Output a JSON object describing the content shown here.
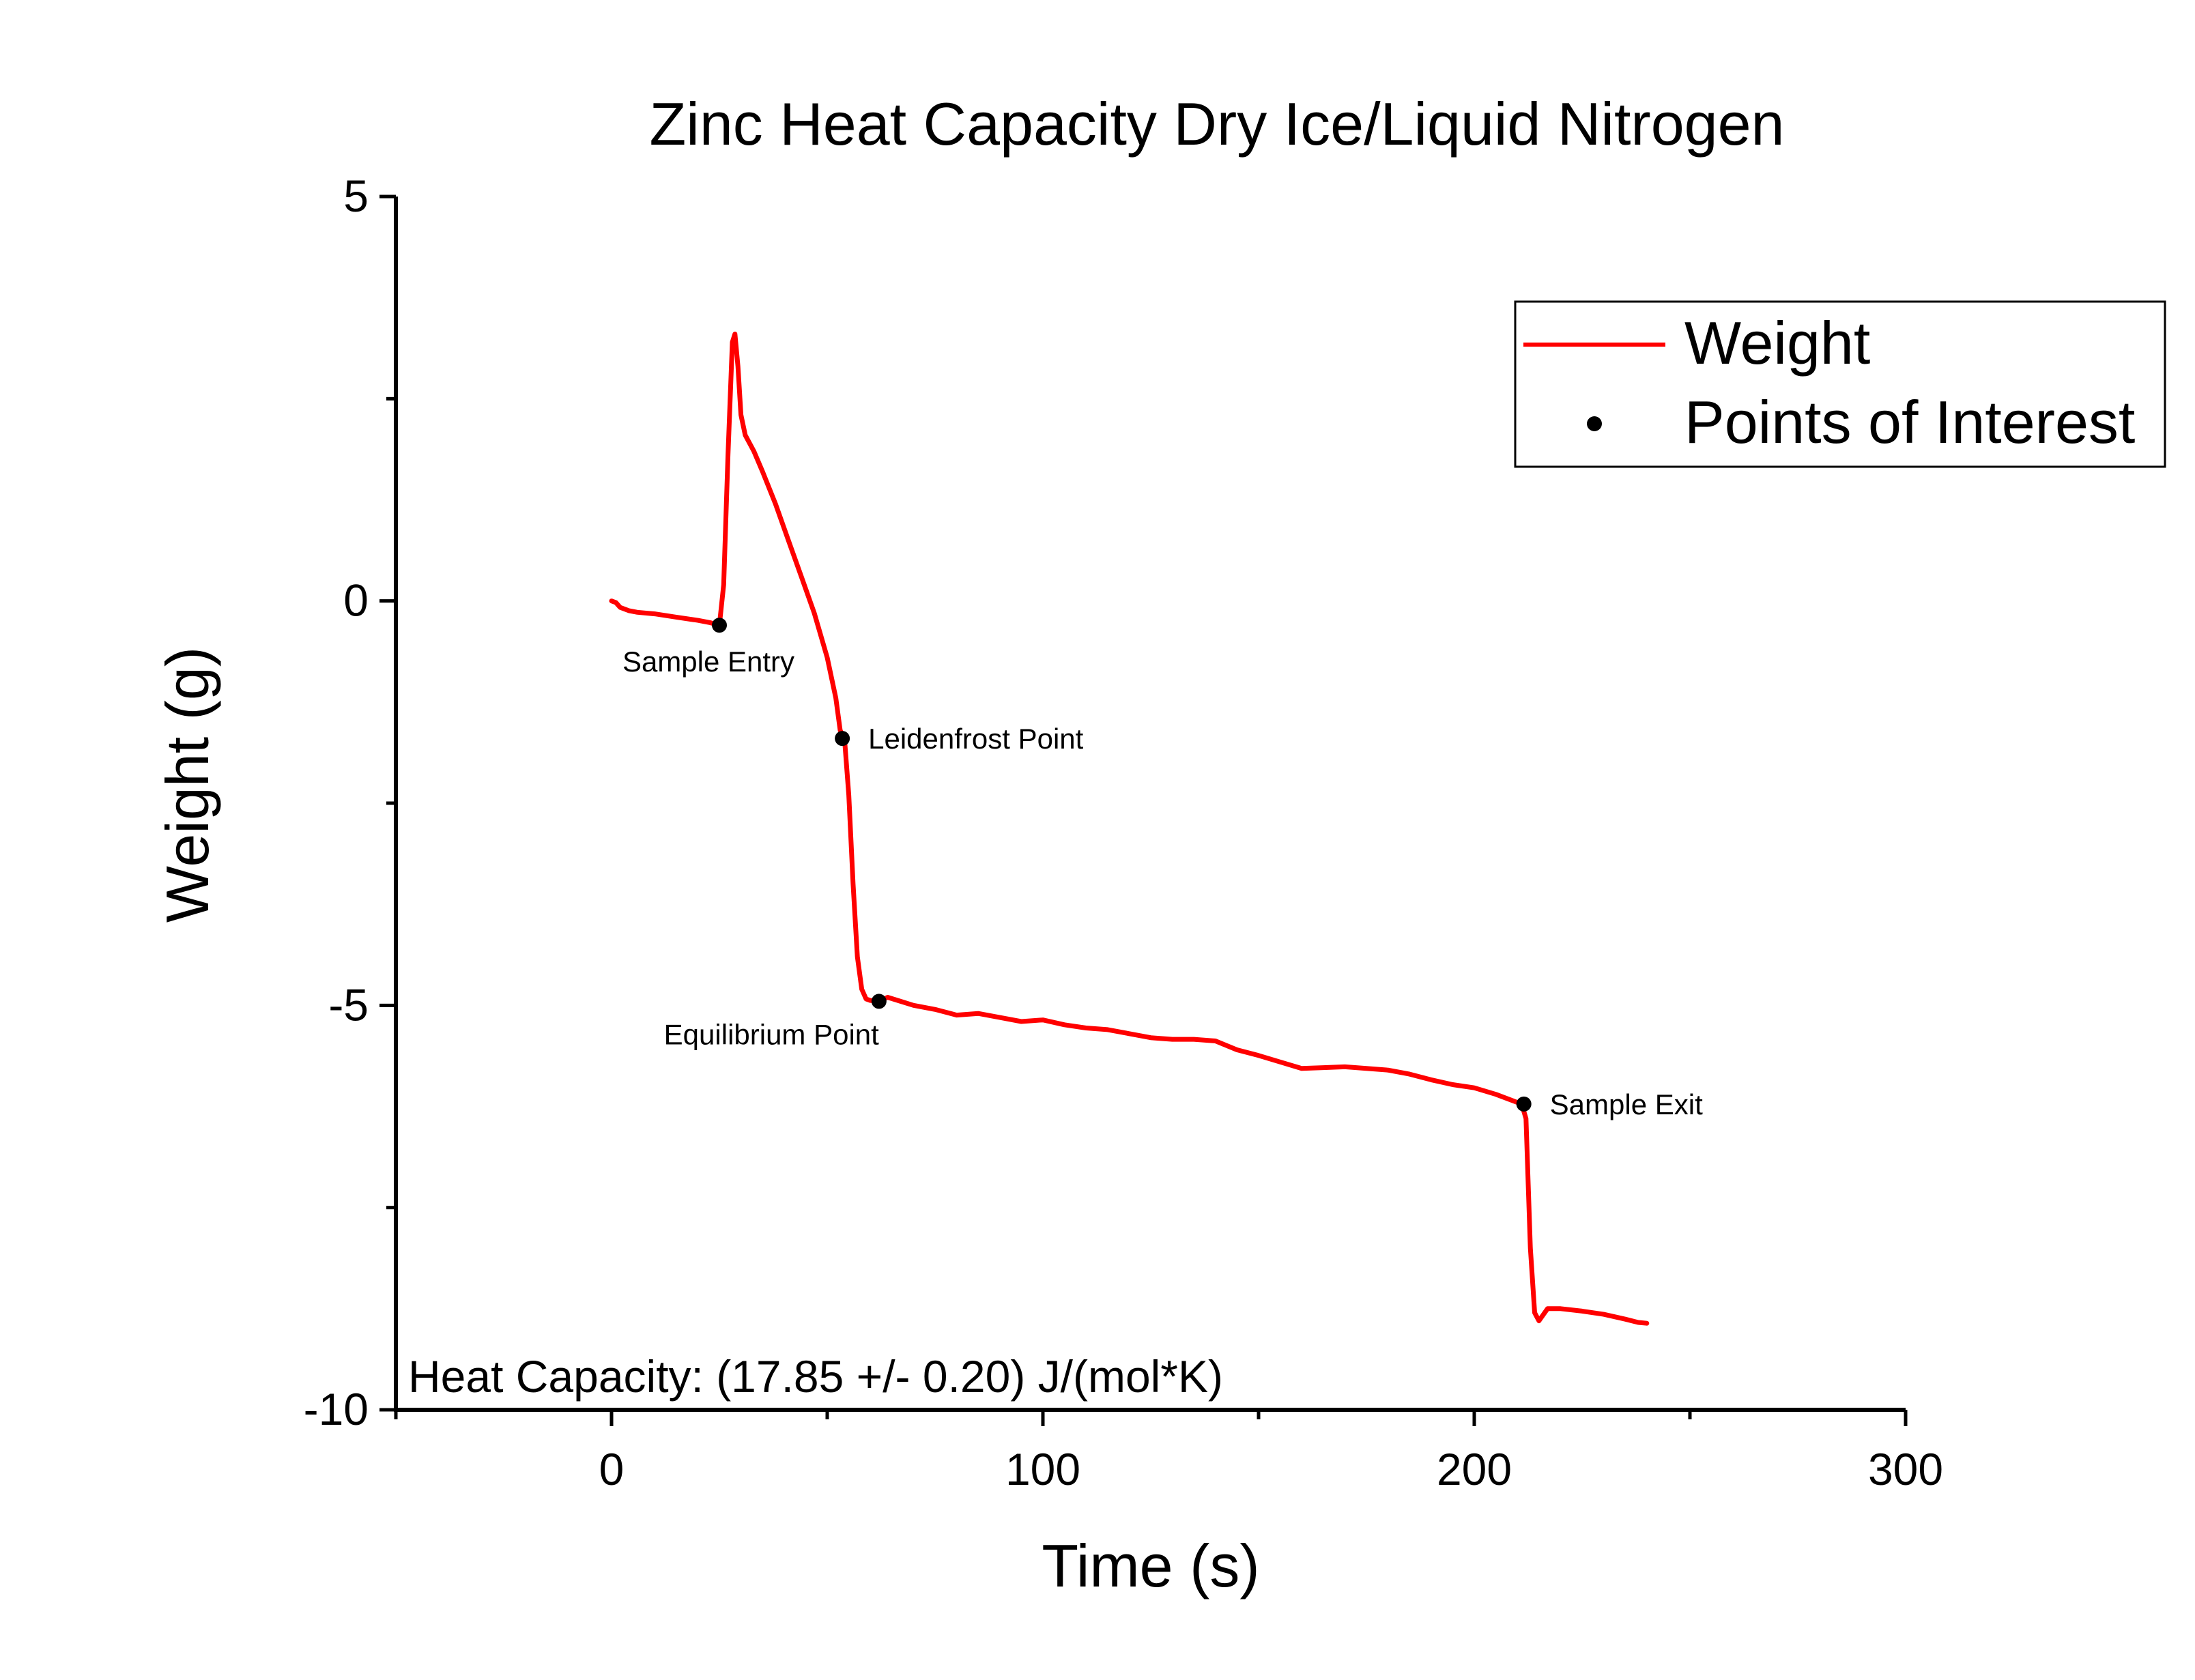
{
  "chart_data": {
    "type": "line",
    "title": "Zinc Heat Capacity Dry Ice/Liquid Nitrogen",
    "xlabel": "Time (s)",
    "ylabel": "Weight (g)",
    "xlim": [
      -50,
      300
    ],
    "ylim": [
      -10,
      5
    ],
    "x_ticks": [
      0,
      100,
      200,
      300
    ],
    "x_tick_labels": [
      "0",
      "100",
      "200",
      "300"
    ],
    "y_ticks": [
      5,
      0,
      -5,
      -10
    ],
    "y_tick_labels": [
      "5",
      "0",
      "-5",
      "-10"
    ],
    "grid": false,
    "legend_position": "top-right",
    "legend": [
      {
        "label": "Weight",
        "marker": "line",
        "color": "#ff0000"
      },
      {
        "label": "Points of Interest",
        "marker": "dot",
        "color": "#000000"
      }
    ],
    "series": [
      {
        "name": "Weight",
        "color": "#ff0000",
        "points": [
          [
            0,
            0.0
          ],
          [
            1,
            -0.02
          ],
          [
            2,
            -0.08
          ],
          [
            4,
            -0.12
          ],
          [
            6,
            -0.14
          ],
          [
            10,
            -0.16
          ],
          [
            15,
            -0.2
          ],
          [
            20,
            -0.24
          ],
          [
            23,
            -0.27
          ],
          [
            25,
            -0.3
          ],
          [
            26,
            0.2
          ],
          [
            27,
            1.8
          ],
          [
            28,
            3.2
          ],
          [
            28.6,
            3.3
          ],
          [
            29.3,
            2.9
          ],
          [
            30,
            2.3
          ],
          [
            31,
            2.05
          ],
          [
            33,
            1.85
          ],
          [
            35,
            1.6
          ],
          [
            38,
            1.2
          ],
          [
            41,
            0.75
          ],
          [
            44,
            0.3
          ],
          [
            47,
            -0.15
          ],
          [
            50,
            -0.7
          ],
          [
            52,
            -1.2
          ],
          [
            53,
            -1.6
          ],
          [
            54,
            -1.7
          ],
          [
            55,
            -2.4
          ],
          [
            56,
            -3.5
          ],
          [
            57,
            -4.4
          ],
          [
            58,
            -4.8
          ],
          [
            59,
            -4.92
          ],
          [
            60,
            -4.94
          ],
          [
            62,
            -4.95
          ],
          [
            64,
            -4.9
          ],
          [
            67,
            -4.95
          ],
          [
            70,
            -5.0
          ],
          [
            75,
            -5.05
          ],
          [
            80,
            -5.12
          ],
          [
            85,
            -5.1
          ],
          [
            90,
            -5.15
          ],
          [
            95,
            -5.2
          ],
          [
            100,
            -5.18
          ],
          [
            105,
            -5.24
          ],
          [
            110,
            -5.28
          ],
          [
            115,
            -5.3
          ],
          [
            120,
            -5.35
          ],
          [
            125,
            -5.4
          ],
          [
            130,
            -5.42
          ],
          [
            135,
            -5.42
          ],
          [
            140,
            -5.44
          ],
          [
            145,
            -5.55
          ],
          [
            150,
            -5.62
          ],
          [
            155,
            -5.7
          ],
          [
            160,
            -5.78
          ],
          [
            165,
            -5.77
          ],
          [
            170,
            -5.76
          ],
          [
            175,
            -5.78
          ],
          [
            180,
            -5.8
          ],
          [
            185,
            -5.85
          ],
          [
            190,
            -5.92
          ],
          [
            195,
            -5.98
          ],
          [
            200,
            -6.02
          ],
          [
            205,
            -6.1
          ],
          [
            210,
            -6.2
          ],
          [
            211,
            -6.22
          ],
          [
            212,
            -6.4
          ],
          [
            213,
            -8.0
          ],
          [
            214,
            -8.8
          ],
          [
            215,
            -8.9
          ],
          [
            217,
            -8.75
          ],
          [
            220,
            -8.75
          ],
          [
            225,
            -8.78
          ],
          [
            230,
            -8.82
          ],
          [
            235,
            -8.88
          ],
          [
            238,
            -8.92
          ],
          [
            240,
            -8.93
          ]
        ]
      },
      {
        "name": "Points of Interest",
        "color": "#000000",
        "points": [
          {
            "x": 25,
            "y": -0.3,
            "label": "Sample Entry",
            "label_pos": "below"
          },
          {
            "x": 53.5,
            "y": -1.7,
            "label": "Leidenfrost Point",
            "label_pos": "right"
          },
          {
            "x": 62,
            "y": -4.95,
            "label": "Equilibrium Point",
            "label_pos": "below-left"
          },
          {
            "x": 211.5,
            "y": -6.22,
            "label": "Sample Exit",
            "label_pos": "right"
          }
        ]
      }
    ],
    "annotations": [
      {
        "text": "Heat Capacity: (17.85 +/- 0.20) J/(mol*K)",
        "position": "bottom-left inside plot"
      }
    ]
  }
}
